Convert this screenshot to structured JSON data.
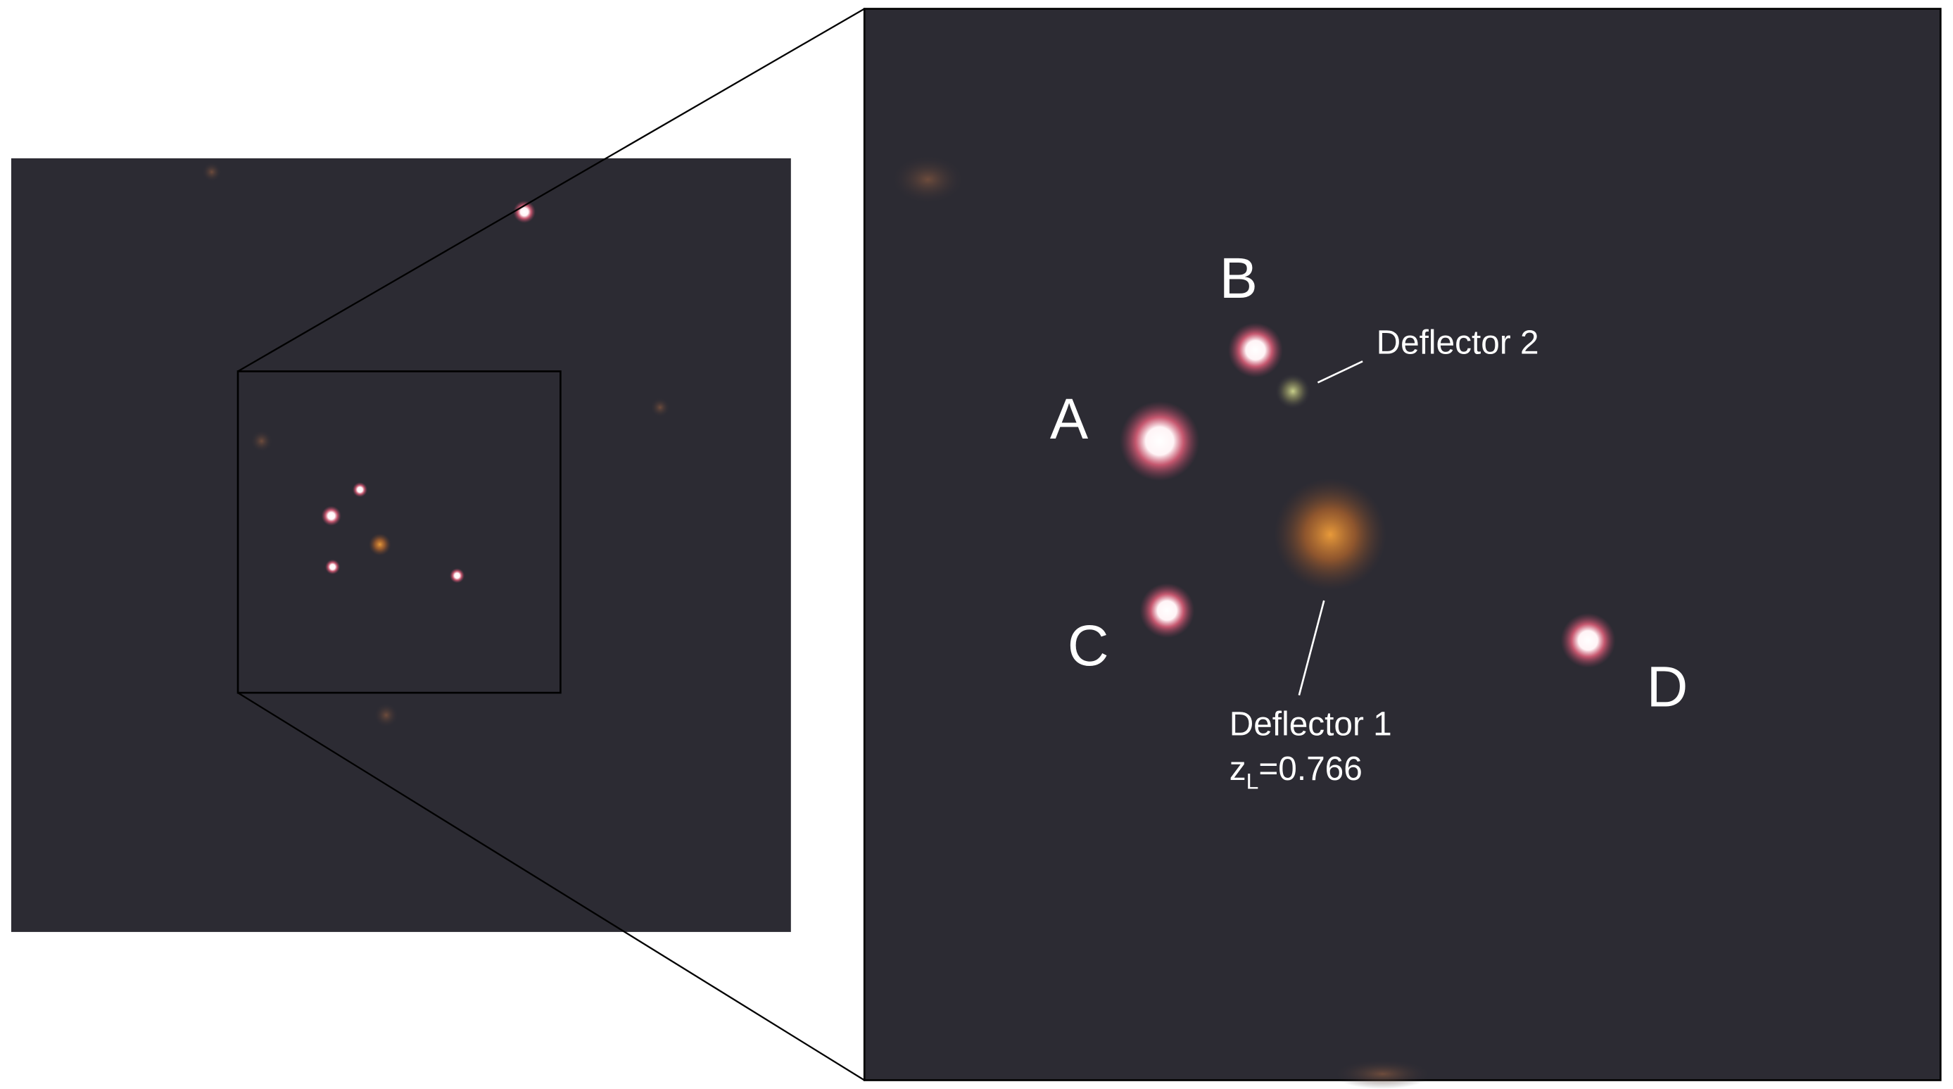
{
  "images": [
    {
      "label": "A"
    },
    {
      "label": "B"
    },
    {
      "label": "C"
    },
    {
      "label": "D"
    }
  ],
  "deflectors": [
    {
      "label": "Deflector 1",
      "redshift": {
        "symbol": "z",
        "subscript": "L",
        "text": "=0.766"
      }
    },
    {
      "label": "Deflector 2"
    }
  ]
}
